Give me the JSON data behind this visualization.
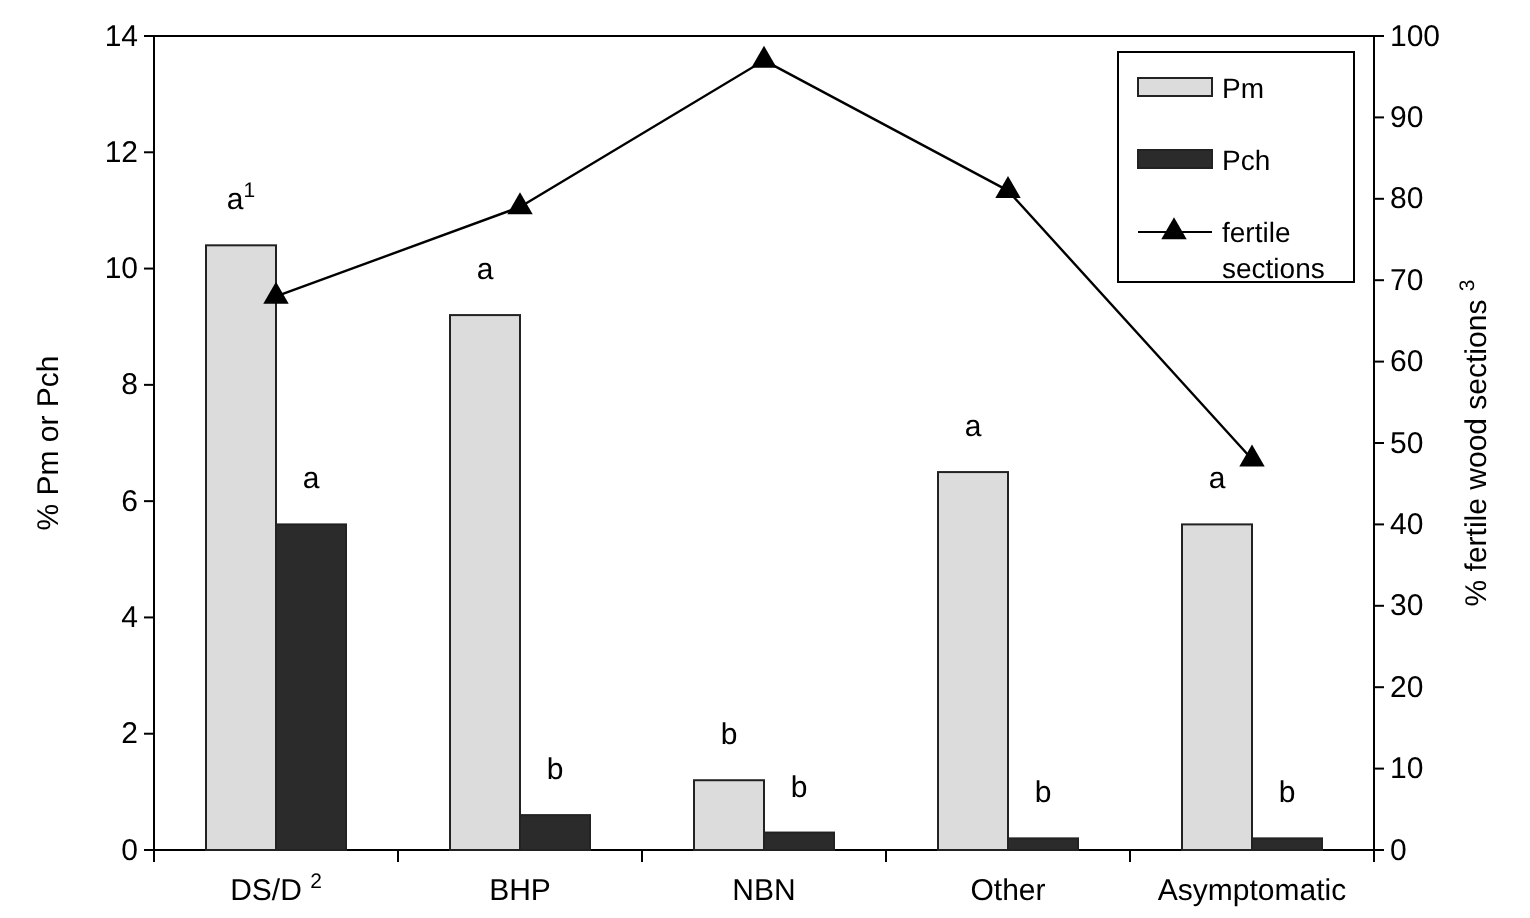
{
  "chart_data": {
    "type": "bar",
    "categories": [
      "DS/D $^{2}$",
      "BHP",
      "NBN",
      "Other",
      "Asymptomatic"
    ],
    "ylabel": "% Pm or Pch",
    "y2label": "% fertile wood sections $^{3}$",
    "ylim": [
      0,
      14
    ],
    "yticks": [
      0,
      2,
      4,
      6,
      8,
      10,
      12,
      14
    ],
    "y2lim": [
      0,
      100
    ],
    "y2ticks": [
      0,
      10,
      20,
      30,
      40,
      50,
      60,
      70,
      80,
      90,
      100
    ],
    "legend": "top right",
    "grid": false,
    "series": [
      {
        "name": "Pm",
        "color": "#dcdcdc",
        "values": [
          10.4,
          9.2,
          1.2,
          6.5,
          5.6
        ]
      },
      {
        "name": "Pch",
        "color": "#2b2b2b",
        "values": [
          5.6,
          0.6,
          0.3,
          0.2,
          0.2
        ]
      },
      {
        "name": "fertile sections",
        "type": "line",
        "axis": "y2",
        "color": "#000000",
        "marker": "triangle",
        "line_style": "solid",
        "values": [
          68,
          79,
          97,
          81,
          48
        ]
      }
    ],
    "annotations": [
      "a$^{1}$",
      "a",
      "a",
      "b",
      "b",
      "b",
      "a",
      "b",
      "a",
      "b"
    ]
  }
}
